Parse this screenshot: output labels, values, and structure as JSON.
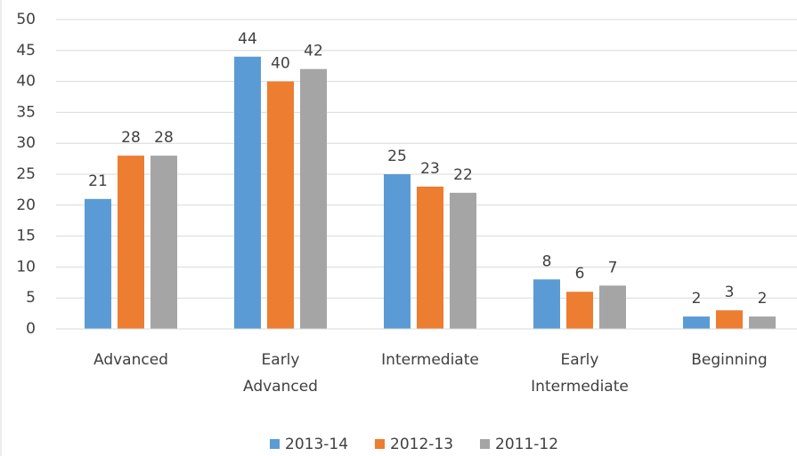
{
  "chart_data": {
    "type": "bar",
    "categories": [
      "Advanced",
      "Early Advanced",
      "Intermediate",
      "Early Intermediate",
      "Beginning"
    ],
    "series": [
      {
        "name": "2013-14",
        "color": "#5b9bd5",
        "values": [
          21,
          44,
          25,
          8,
          2
        ]
      },
      {
        "name": "2012-13",
        "color": "#ed7d31",
        "values": [
          28,
          40,
          23,
          6,
          3
        ]
      },
      {
        "name": "2011-12",
        "color": "#a5a5a5",
        "values": [
          28,
          42,
          22,
          7,
          2
        ]
      }
    ],
    "ylim": [
      0,
      50
    ],
    "yticks": [
      0,
      5,
      10,
      15,
      20,
      25,
      30,
      35,
      40,
      45,
      50
    ],
    "grid": true,
    "legend": "bottom"
  }
}
